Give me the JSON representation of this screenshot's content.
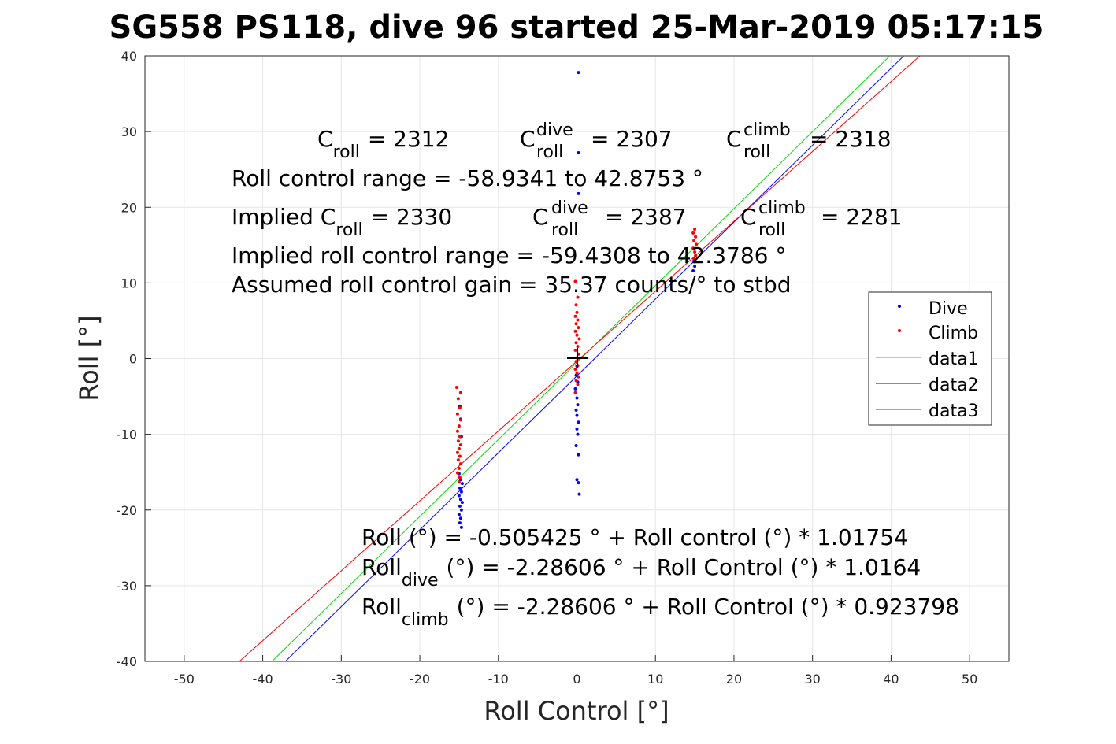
{
  "chart_data": {
    "type": "scatter",
    "title": "SG558 PS118, dive 96 started 25-Mar-2019 05:17:15",
    "xlabel": "Roll Control [°]",
    "ylabel": "Roll [°]",
    "xlim": [
      -55,
      55
    ],
    "ylim": [
      -40,
      40
    ],
    "grid": true,
    "legend_position": "right",
    "x_ticks": [
      -50,
      -40,
      -30,
      -20,
      -10,
      0,
      10,
      20,
      30,
      40,
      50
    ],
    "y_ticks": [
      -40,
      -30,
      -20,
      -10,
      0,
      10,
      20,
      30,
      40
    ],
    "colors": {
      "dive": "#0000ff",
      "climb": "#ff0000",
      "data1": "#00dd00",
      "data2": "#0000ff",
      "data3": "#ff0000",
      "grid": "#e6e6e6"
    },
    "series": [
      {
        "name": "Dive",
        "kind": "points",
        "points": [
          [
            0.2,
            37.8
          ],
          [
            0.2,
            27.2
          ],
          [
            0.2,
            21.8
          ],
          [
            -14.9,
            -6.3
          ],
          [
            -14.8,
            -8.0
          ],
          [
            -14.7,
            -10.3
          ],
          [
            -15.0,
            -15.2
          ],
          [
            -14.8,
            -16.0
          ],
          [
            -14.6,
            -16.5
          ],
          [
            -14.9,
            -17.1
          ],
          [
            -14.7,
            -17.6
          ],
          [
            -15.0,
            -18.1
          ],
          [
            -14.8,
            -18.6
          ],
          [
            -14.6,
            -19.0
          ],
          [
            -14.9,
            -19.5
          ],
          [
            -14.7,
            -20.0
          ],
          [
            -15.0,
            -20.6
          ],
          [
            -14.8,
            -21.1
          ],
          [
            -14.9,
            -21.7
          ],
          [
            -14.7,
            -22.3
          ],
          [
            0.0,
            -1.0
          ],
          [
            -0.1,
            -2.2
          ],
          [
            0.1,
            -3.1
          ],
          [
            -0.2,
            -4.0
          ],
          [
            0.0,
            -5.2
          ],
          [
            0.1,
            -6.1
          ],
          [
            -0.1,
            -6.8
          ],
          [
            0.0,
            -7.5
          ],
          [
            0.2,
            -8.4
          ],
          [
            0.0,
            -9.3
          ],
          [
            0.1,
            -10.0
          ],
          [
            -0.1,
            -11.5
          ],
          [
            0.2,
            -12.7
          ],
          [
            0.0,
            -16.0
          ],
          [
            0.2,
            -16.4
          ],
          [
            0.3,
            -17.9
          ],
          [
            14.9,
            12.9
          ],
          [
            15.0,
            12.2
          ],
          [
            14.8,
            11.6
          ]
        ]
      },
      {
        "name": "Climb",
        "kind": "points",
        "points": [
          [
            -15.3,
            -3.8
          ],
          [
            -14.8,
            -4.5
          ],
          [
            -15.1,
            -5.3
          ],
          [
            -14.9,
            -6.5
          ],
          [
            -15.2,
            -7.3
          ],
          [
            -14.8,
            -8.1
          ],
          [
            -15.0,
            -8.9
          ],
          [
            -15.2,
            -9.6
          ],
          [
            -14.9,
            -10.3
          ],
          [
            -15.1,
            -10.9
          ],
          [
            -14.8,
            -11.4
          ],
          [
            -15.0,
            -11.9
          ],
          [
            -15.2,
            -12.4
          ],
          [
            -14.9,
            -12.9
          ],
          [
            -15.1,
            -13.4
          ],
          [
            -14.8,
            -13.9
          ],
          [
            -15.0,
            -14.5
          ],
          [
            -15.2,
            -15.1
          ],
          [
            -14.9,
            -15.7
          ],
          [
            -15.0,
            -16.3
          ],
          [
            -0.2,
            10.2
          ],
          [
            0.1,
            8.1
          ],
          [
            -0.1,
            7.1
          ],
          [
            0.0,
            6.1
          ],
          [
            -0.2,
            5.6
          ],
          [
            0.1,
            5.1
          ],
          [
            -0.1,
            4.6
          ],
          [
            0.2,
            4.1
          ],
          [
            -0.2,
            3.6
          ],
          [
            0.0,
            3.1
          ],
          [
            0.3,
            2.6
          ],
          [
            -0.1,
            2.1
          ],
          [
            0.1,
            1.6
          ],
          [
            -0.2,
            1.1
          ],
          [
            0.2,
            0.6
          ],
          [
            0.0,
            0.1
          ],
          [
            -0.1,
            -0.4
          ],
          [
            0.1,
            -0.9
          ],
          [
            -0.2,
            -1.4
          ],
          [
            0.0,
            -1.9
          ],
          [
            0.2,
            -2.4
          ],
          [
            -0.1,
            -2.9
          ],
          [
            0.1,
            -3.4
          ],
          [
            -0.2,
            -4.5
          ],
          [
            15.0,
            17.1
          ],
          [
            14.8,
            16.6
          ],
          [
            15.1,
            16.1
          ],
          [
            14.9,
            15.6
          ],
          [
            15.2,
            15.1
          ],
          [
            14.8,
            14.6
          ],
          [
            15.0,
            14.1
          ],
          [
            15.1,
            13.6
          ],
          [
            14.9,
            13.2
          ],
          [
            15.0,
            12.8
          ]
        ]
      },
      {
        "name": "data1",
        "kind": "line",
        "points": [
          [
            -40,
            -41.2
          ],
          [
            42,
            42.2
          ]
        ]
      },
      {
        "name": "data2",
        "kind": "line",
        "points": [
          [
            -38,
            -40.9
          ],
          [
            42,
            40.4
          ]
        ]
      },
      {
        "name": "data3",
        "kind": "line",
        "points": [
          [
            -46,
            -42.8
          ],
          [
            44,
            40.3
          ]
        ]
      }
    ],
    "annotations": {
      "c_roll": {
        "main": "C",
        "sub": "roll",
        "value": "= 2312"
      },
      "c_roll_dive": {
        "main": "C",
        "sup": "dive",
        "sub": "roll",
        "value": "= 2307"
      },
      "c_roll_climb": {
        "main": "C",
        "sup": "climb",
        "sub": "roll",
        "value": "= 2318"
      },
      "roll_control_range": "Roll control range = -58.9341 to 42.8753 °",
      "implied_c_roll": {
        "main": "Implied C",
        "sub": "roll",
        "value": "= 2330"
      },
      "implied_c_dive": {
        "main": "C",
        "sup": "dive",
        "sub": "roll",
        "value": "= 2387"
      },
      "implied_c_climb": {
        "main": "C",
        "sup": "climb",
        "sub": "roll",
        "value": "= 2281"
      },
      "implied_range": "Implied roll control range = -59.4308 to 42.3786 °",
      "gain": "Assumed roll control gain = 35.37 counts/° to stbd",
      "fit_all": "Roll (°) = -0.505425 ° + Roll control (°) * 1.01754",
      "fit_dive": {
        "main": "Roll",
        "sub": "dive",
        "rest": "(°) = -2.28606 ° + Roll Control (°) * 1.0164"
      },
      "fit_climb": {
        "main": "Roll",
        "sub": "climb",
        "rest": "(°) = -2.28606 ° + Roll Control (°) * 0.923798"
      }
    }
  }
}
